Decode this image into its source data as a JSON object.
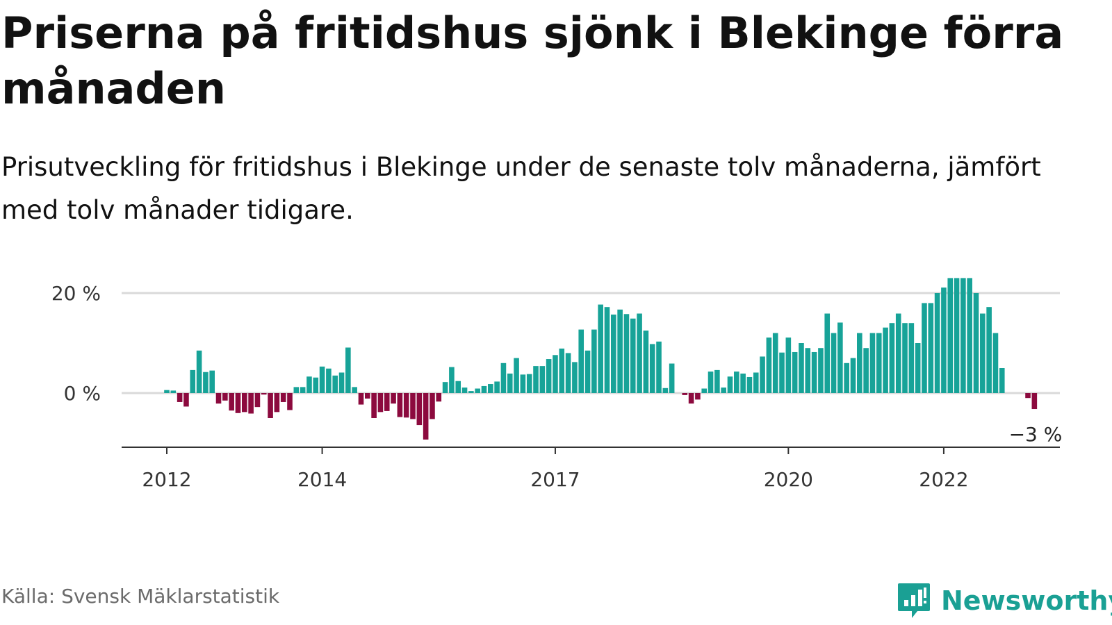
{
  "title": "Priserna på fritidshus sjönk i Blekinge förra månaden",
  "subtitle": "Prisutveckling för fritidshus i Blekinge under de senaste tolv månaderna, jämfört med tolv månader tidigare.",
  "source": "Källa: Svensk Mäklarstatistik",
  "logo": {
    "text": "Newsworthy",
    "icon": "newsworthy-logo-icon",
    "color": "#1aa094"
  },
  "colors": {
    "positive": "#17a398",
    "negative": "#8c0a3e",
    "grid": "#d9d9d9",
    "axis": "#333333"
  },
  "chart_data": {
    "type": "bar",
    "start": "2012-01",
    "ylim": [
      -10,
      23
    ],
    "yticks": [
      {
        "value": 0,
        "label": "0 %"
      },
      {
        "value": 20,
        "label": "20 %"
      }
    ],
    "xticks": [
      {
        "value": "2012-01",
        "label": "2012"
      },
      {
        "value": "2014-01",
        "label": "2014"
      },
      {
        "value": "2017-01",
        "label": "2017"
      },
      {
        "value": "2020-01",
        "label": "2020"
      },
      {
        "value": "2022-01",
        "label": "2022"
      }
    ],
    "end_label": "−3 %",
    "grid": true,
    "values": [
      0.6,
      0.5,
      -1.8,
      -2.7,
      4.6,
      8.5,
      4.2,
      4.5,
      -2.1,
      -1.5,
      -3.5,
      -4.0,
      -3.8,
      -4.1,
      -2.8,
      -0.3,
      -5.0,
      -3.8,
      -1.8,
      -3.4,
      1.2,
      1.2,
      3.3,
      3.1,
      5.3,
      4.9,
      3.5,
      4.1,
      9.1,
      1.2,
      -2.3,
      -1.1,
      -5.0,
      -3.8,
      -3.6,
      -2.1,
      -4.8,
      -4.9,
      -5.2,
      -6.4,
      -9.3,
      -5.2,
      -1.7,
      2.2,
      5.2,
      2.4,
      1.1,
      0.4,
      0.9,
      1.4,
      1.8,
      2.3,
      6.0,
      3.9,
      7.0,
      3.7,
      3.8,
      5.4,
      5.4,
      6.8,
      7.6,
      8.9,
      8.0,
      6.2,
      12.7,
      8.5,
      12.7,
      17.7,
      17.2,
      15.7,
      16.7,
      15.8,
      14.9,
      15.9,
      12.5,
      9.8,
      10.3,
      1.0,
      5.9,
      0.0,
      -0.4,
      -2.1,
      -1.3,
      0.9,
      4.3,
      4.6,
      1.1,
      3.3,
      4.3,
      3.9,
      3.2,
      4.1,
      7.3,
      11.1,
      12.0,
      8.1,
      11.1,
      8.2,
      10.0,
      9.0,
      8.2,
      9.0,
      15.9,
      12.0,
      14.1,
      6.0,
      7.0,
      12.0,
      9.0,
      12.0,
      12.0,
      13.1,
      14.0,
      15.9,
      14.0,
      14.0,
      10.0,
      18.0,
      18.0,
      20.0,
      21.1,
      23.0,
      23.0,
      23.0,
      23.0,
      20.0,
      15.9,
      17.2,
      12.0,
      5.0,
      0.0,
      0.0,
      0.0,
      -1.0,
      -3.2
    ]
  }
}
